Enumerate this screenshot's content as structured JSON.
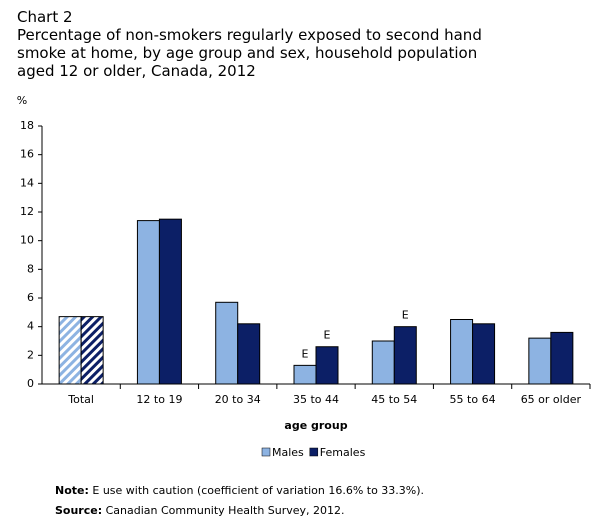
{
  "chart_data": {
    "type": "bar",
    "chart_label": "Chart 2",
    "title": "Percentage of non-smokers regularly exposed to second hand smoke at home, by age group and sex, household population aged 12 or older, Canada, 2012",
    "y_label": "%",
    "x_label": "age group",
    "categories": [
      "Total",
      "12 to 19",
      "20 to 34",
      "35 to 44",
      "45 to 54",
      "55 to 64",
      "65 or older"
    ],
    "hatched": [
      true,
      false,
      false,
      false,
      false,
      false,
      false
    ],
    "series": [
      {
        "name": "Males",
        "color": "#8db3e2",
        "values": [
          4.7,
          11.4,
          5.7,
          1.3,
          3.0,
          4.5,
          3.2
        ],
        "flags": [
          null,
          null,
          null,
          "E",
          null,
          null,
          null
        ]
      },
      {
        "name": "Females",
        "color": "#0c1f66",
        "values": [
          4.7,
          11.5,
          4.2,
          2.6,
          4.0,
          4.2,
          3.6
        ],
        "flags": [
          null,
          null,
          null,
          "E",
          "E",
          null,
          null
        ]
      }
    ],
    "ylim": [
      0,
      18
    ],
    "yticks": [
      0,
      2,
      4,
      6,
      8,
      10,
      12,
      14,
      16,
      18
    ],
    "grid": false,
    "note": {
      "label": "Note:",
      "text": "E use with caution (coefficient of variation 16.6% to 33.3%)."
    },
    "source": {
      "label": "Source:",
      "text": "Canadian Community Health Survey, 2012."
    }
  }
}
